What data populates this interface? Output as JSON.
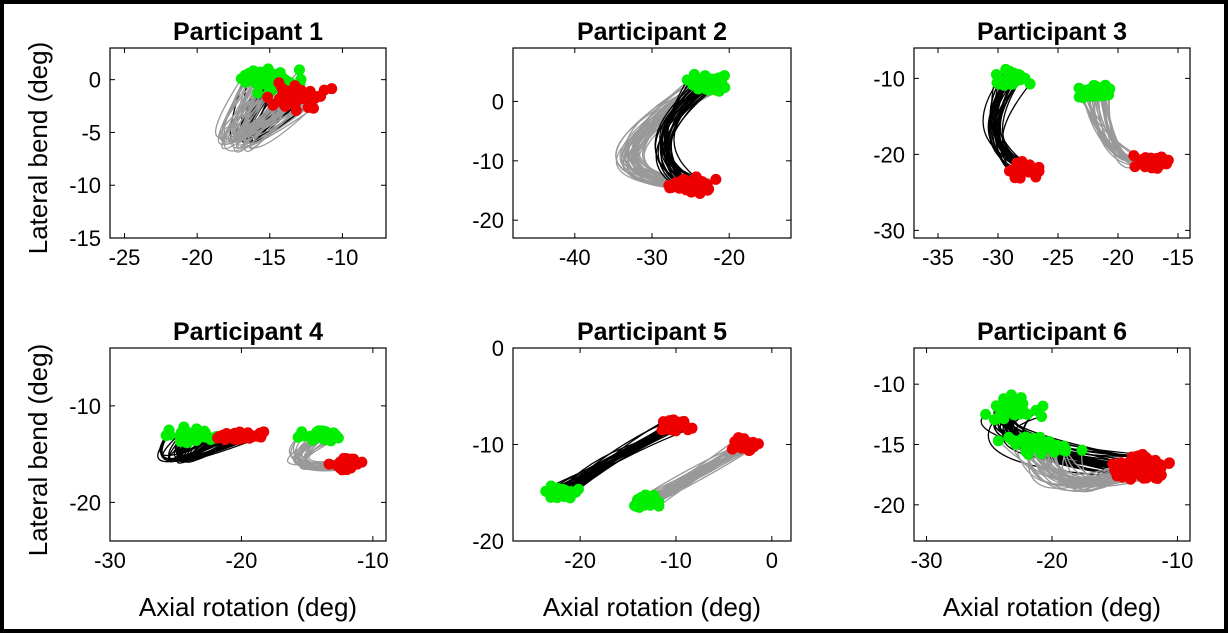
{
  "figure": {
    "ylabel": "Lateral bend (deg)",
    "xlabel": "Axial rotation (deg)"
  },
  "colors": {
    "start_marker": "#00ee00",
    "end_marker": "#ee0000",
    "trajectory_a": "#000000",
    "trajectory_b": "#999999"
  },
  "chart_data": [
    {
      "type": "line",
      "title": "Participant 1",
      "xlim": [
        -26,
        -7
      ],
      "ylim": [
        -15,
        3
      ],
      "xticks": [
        -25,
        -20,
        -15,
        -10
      ],
      "yticks": [
        0,
        -5,
        -10,
        -15
      ],
      "clusters": [
        {
          "trace": "black",
          "start": [
            -15,
            0
          ],
          "end": [
            -13.5,
            -1.5
          ],
          "via": [
            -19,
            -10
          ],
          "spread": [
            2.2,
            1.6
          ],
          "n": 30
        },
        {
          "trace": "gray",
          "start": [
            -15,
            0
          ],
          "end": [
            -13,
            -1.5
          ],
          "via": [
            -21,
            -11
          ],
          "spread": [
            3,
            2.5
          ],
          "n": 40
        }
      ]
    },
    {
      "type": "line",
      "title": "Participant 2",
      "xlim": [
        -48,
        -12
      ],
      "ylim": [
        -23,
        9
      ],
      "xticks": [
        -40,
        -30,
        -20
      ],
      "yticks": [
        0,
        -10,
        -20
      ],
      "clusters": [
        {
          "trace": "gray",
          "start": [
            -22,
            3
          ],
          "end": [
            -25,
            -14
          ],
          "via": [
            -42,
            -12
          ],
          "spread": [
            4,
            3
          ],
          "n": 45
        },
        {
          "trace": "black",
          "start": [
            -23,
            3
          ],
          "end": [
            -25,
            -14
          ],
          "via": [
            -33,
            -8
          ],
          "spread": [
            3,
            3
          ],
          "n": 30
        }
      ]
    },
    {
      "type": "line",
      "title": "Participant 3",
      "xlim": [
        -37,
        -14
      ],
      "ylim": [
        -31,
        -6
      ],
      "xticks": [
        -35,
        -30,
        -25,
        -20,
        -15
      ],
      "yticks": [
        -10,
        -20,
        -30
      ],
      "clusters": [
        {
          "trace": "black",
          "start": [
            -29,
            -10
          ],
          "end": [
            -28,
            -22
          ],
          "via": [
            -32,
            -18
          ],
          "spread": [
            2,
            3
          ],
          "n": 28
        },
        {
          "trace": "gray",
          "start": [
            -22,
            -12
          ],
          "end": [
            -17,
            -21
          ],
          "via": [
            -21,
            -22
          ],
          "spread": [
            2,
            2.5
          ],
          "n": 30
        }
      ]
    },
    {
      "type": "line",
      "title": "Participant 4",
      "xlim": [
        -30,
        -9
      ],
      "ylim": [
        -24,
        -4
      ],
      "xticks": [
        -30,
        -20,
        -10
      ],
      "yticks": [
        -10,
        -20
      ],
      "clusters": [
        {
          "trace": "black",
          "start": [
            -24,
            -13
          ],
          "end": [
            -20,
            -13
          ],
          "via": [
            -27,
            -18
          ],
          "spread": [
            2.5,
            1.6
          ],
          "n": 32
        },
        {
          "trace": "gray",
          "start": [
            -14,
            -13
          ],
          "end": [
            -12,
            -16
          ],
          "via": [
            -18,
            -17
          ],
          "spread": [
            2,
            1.6
          ],
          "n": 30
        }
      ]
    },
    {
      "type": "line",
      "title": "Participant 5",
      "xlim": [
        -27,
        2
      ],
      "ylim": [
        -20,
        0
      ],
      "xticks": [
        -20,
        -10,
        0
      ],
      "yticks": [
        0,
        -10,
        -20
      ],
      "clusters": [
        {
          "trace": "black",
          "start": [
            -22,
            -15
          ],
          "end": [
            -10,
            -8
          ],
          "via": [
            -16,
            -11
          ],
          "spread": [
            2.2,
            1.6
          ],
          "n": 30
        },
        {
          "trace": "gray",
          "start": [
            -13,
            -16
          ],
          "end": [
            -3,
            -10
          ],
          "via": [
            -7,
            -13
          ],
          "spread": [
            2,
            1.6
          ],
          "n": 30
        }
      ]
    },
    {
      "type": "line",
      "title": "Participant 6",
      "xlim": [
        -31,
        -9
      ],
      "ylim": [
        -23,
        -7
      ],
      "xticks": [
        -30,
        -20,
        -10
      ],
      "yticks": [
        -10,
        -15,
        -20
      ],
      "clusters": [
        {
          "trace": "black",
          "start": [
            -23,
            -12
          ],
          "end": [
            -13,
            -17
          ],
          "via": [
            -26,
            -15
          ],
          "spread": [
            3,
            2.5
          ],
          "n": 45
        },
        {
          "trace": "gray",
          "start": [
            -21,
            -15
          ],
          "end": [
            -13,
            -17
          ],
          "via": [
            -20,
            -20
          ],
          "spread": [
            4,
            2
          ],
          "n": 40
        }
      ]
    }
  ]
}
